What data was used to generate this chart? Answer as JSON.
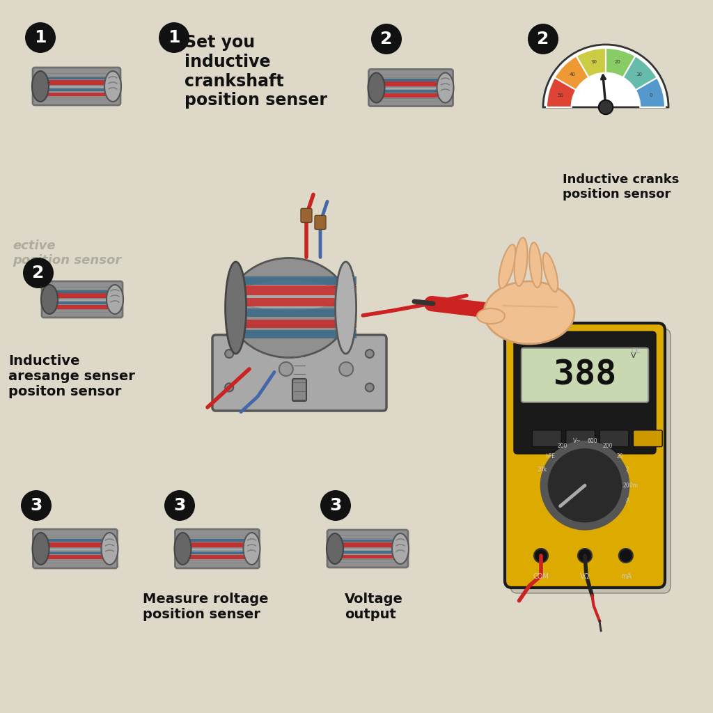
{
  "bg_color": "#ddd8c8",
  "badge_color": "#111111",
  "badge_text_color": "#ffffff",
  "label_color": "#111111",
  "shadow_color": "#b8b0a0",
  "sensor_gray_dark": "#707070",
  "sensor_gray_mid": "#909090",
  "sensor_gray_light": "#b8b8b8",
  "sensor_red": "#cc2222",
  "sensor_teal": "#336688",
  "sensor_blue": "#4477aa",
  "wire_red": "#cc2222",
  "wire_blue": "#4466aa",
  "wire_gray": "#888888",
  "multimeter_yellow": "#ddaa00",
  "multimeter_black": "#1a1a1a",
  "multimeter_display": "#c8d8b0",
  "multimeter_display_text": "#111111",
  "multimeter_reading": "388",
  "probe_red": "#cc2222",
  "hand_skin": "#f0c090",
  "hand_skin_dark": "#d4a070",
  "gauge_colors": [
    "#5599cc",
    "#66bbaa",
    "#88cc66",
    "#cccc44",
    "#ee9933",
    "#dd4433"
  ],
  "step1_text": "Set you\ninductive\ncrankshaft\nposition senser",
  "step2_gauge_text": "Inductive cranks\nposition sensor",
  "step2_mid_text": "Inductive\naresange senser\npositon sensor",
  "step2_faded_text": "ective\nposition sensor",
  "step3_text": "Measure roltage\nposition senser",
  "step3b_text": "Voltage\noutput"
}
